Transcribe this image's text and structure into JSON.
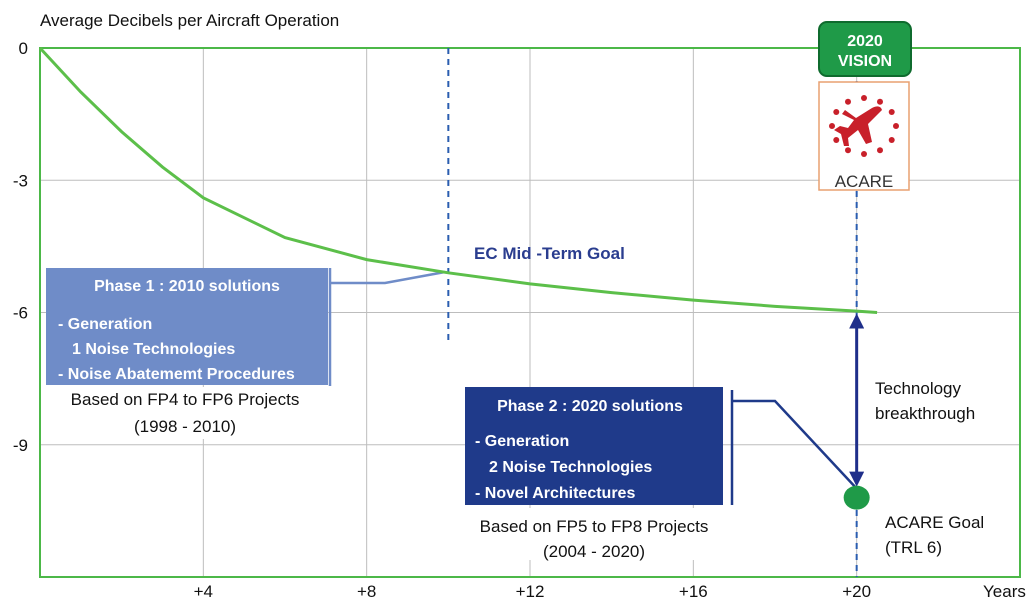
{
  "chart_data": {
    "type": "line",
    "ylabel": "Average Decibels per Aircraft Operation",
    "xlabel": "Years",
    "x": [
      0,
      1,
      2,
      3,
      4,
      6,
      8,
      10,
      12,
      14,
      16,
      18,
      20,
      20.5
    ],
    "values": [
      0,
      -1.0,
      -1.9,
      -2.7,
      -3.4,
      -4.3,
      -4.8,
      -5.1,
      -5.35,
      -5.55,
      -5.72,
      -5.86,
      -5.97,
      -6
    ],
    "color": "#5cbf4a",
    "xlim": [
      0,
      24
    ],
    "xticks": [
      {
        "value": 4,
        "label": "+4"
      },
      {
        "value": 8,
        "label": "+8"
      },
      {
        "value": 12,
        "label": "+12"
      },
      {
        "value": 16,
        "label": "+16"
      },
      {
        "value": 20,
        "label": "+20"
      }
    ],
    "ylim": [
      -12,
      0
    ],
    "yticks": [
      0,
      -3,
      -6,
      -9
    ],
    "grid": true,
    "vlines": [
      10,
      20
    ],
    "mid_term": "EC Mid -Term Goal",
    "phase1": {
      "title": "Phase 1 : 2010 solutions",
      "lines": [
        "- Generation",
        "1 Noise Technologies",
        "- Noise Abatememt Procedures"
      ],
      "note": [
        "Based on FP4 to FP6 Projects",
        "(1998 - 2010)"
      ]
    },
    "phase2": {
      "title": "Phase 2 : 2020 solutions",
      "lines": [
        "- Generation",
        "2 Noise Technologies",
        "- Novel Architectures"
      ],
      "note": [
        "Based on FP5 to FP8 Projects",
        "(2004 - 2020)"
      ]
    },
    "breakthrough": [
      "Technology",
      "breakthrough"
    ],
    "goal": {
      "x": 20,
      "y": -10.2,
      "label": [
        "ACARE Goal",
        "(TRL 6)"
      ]
    },
    "logo": {
      "badge": [
        "2020",
        "VISION"
      ],
      "name": "ACARE"
    }
  }
}
